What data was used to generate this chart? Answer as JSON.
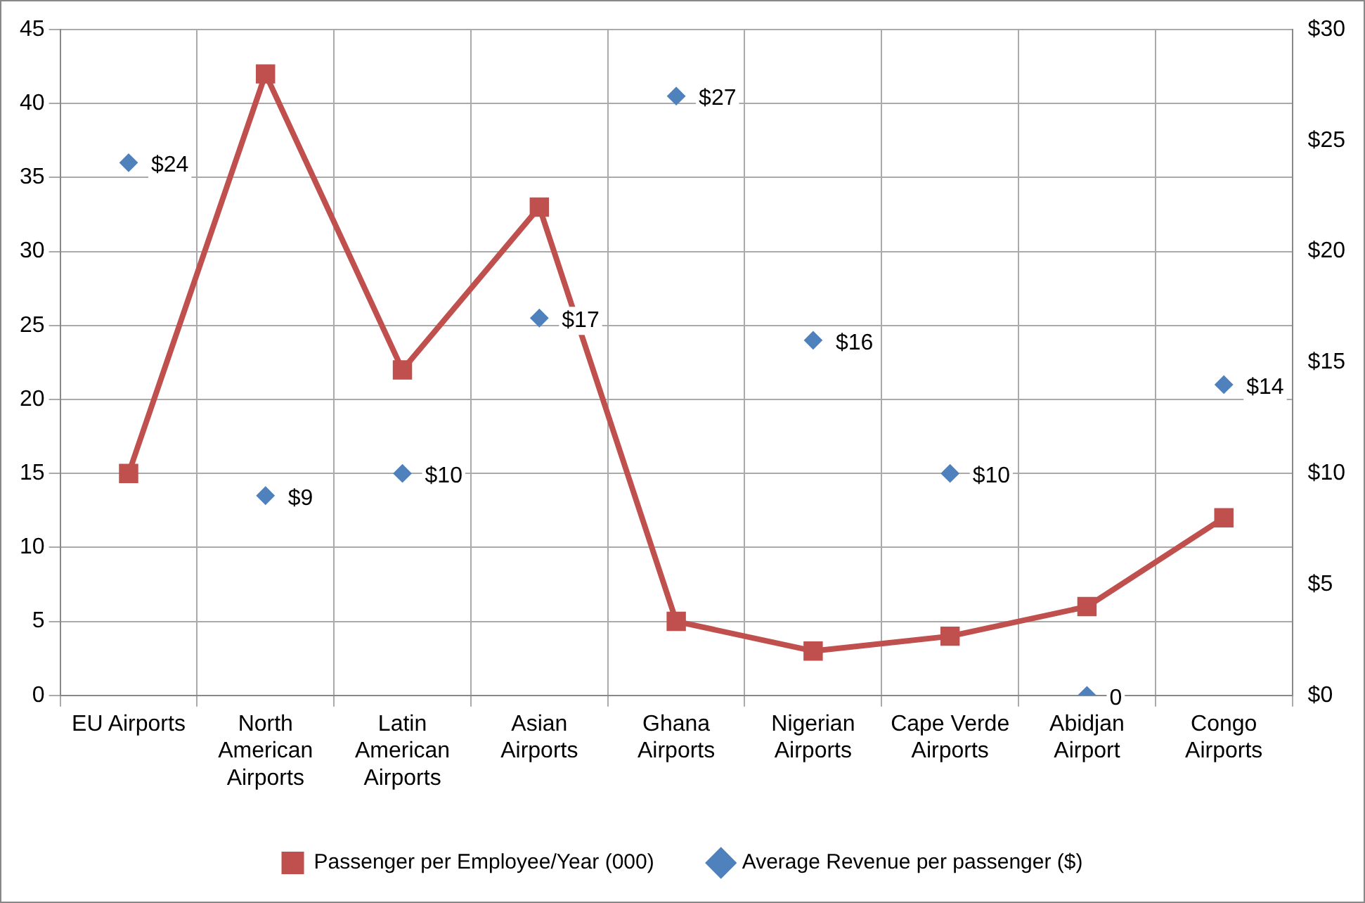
{
  "chart_data": {
    "type": "line",
    "categories": [
      "EU Airports",
      "North American Airports",
      "Latin American Airports",
      "Asian Airports",
      "Ghana Airports",
      "Nigerian Airports",
      "Cape Verde Airports",
      "Abidjan Airport",
      "Congo Airports"
    ],
    "series": [
      {
        "name": "Passenger per Employee/Year (000)",
        "color": "#c0504d",
        "marker": "square",
        "values": [
          15,
          42,
          22,
          33,
          5,
          3,
          4,
          6,
          12
        ]
      },
      {
        "name": "Average Revenue per passenger ($)",
        "type": "scatter",
        "axis": "y2",
        "color": "#4f81bd",
        "marker": "diamond",
        "values": [
          24,
          9,
          10,
          17,
          27,
          16,
          10,
          0,
          14
        ],
        "value_labels": [
          "$24",
          "$9",
          "$10",
          "$17",
          "$27",
          "$16",
          "$10",
          "0",
          "$14"
        ]
      }
    ],
    "ylim": [
      0,
      45
    ],
    "yticks": [
      0,
      5,
      10,
      15,
      20,
      25,
      30,
      35,
      40,
      45
    ],
    "y2lim": [
      0,
      30
    ],
    "y2ticks": [
      {
        "value": 0,
        "label": "$0"
      },
      {
        "value": 5,
        "label": "$5"
      },
      {
        "value": 10,
        "label": "$10"
      },
      {
        "value": 15,
        "label": "$15"
      },
      {
        "value": 20,
        "label": "$20"
      },
      {
        "value": 25,
        "label": "$25"
      },
      {
        "value": 30,
        "label": "$30"
      }
    ],
    "grid": true,
    "legend": "bottom"
  }
}
